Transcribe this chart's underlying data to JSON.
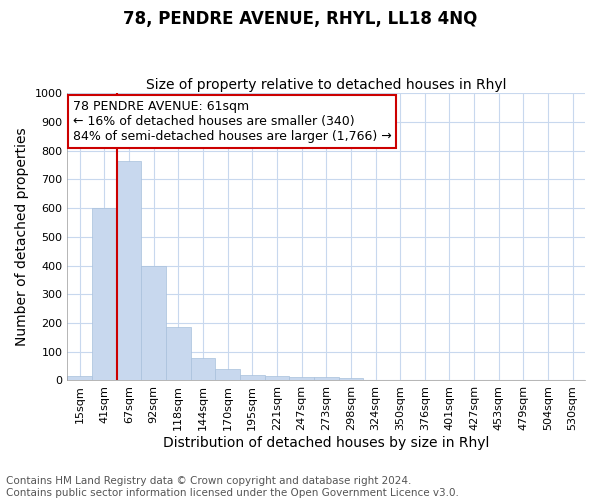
{
  "title": "78, PENDRE AVENUE, RHYL, LL18 4NQ",
  "subtitle": "Size of property relative to detached houses in Rhyl",
  "xlabel": "Distribution of detached houses by size in Rhyl",
  "ylabel": "Number of detached properties",
  "bar_labels": [
    "15sqm",
    "41sqm",
    "67sqm",
    "92sqm",
    "118sqm",
    "144sqm",
    "170sqm",
    "195sqm",
    "221sqm",
    "247sqm",
    "273sqm",
    "298sqm",
    "324sqm",
    "350sqm",
    "376sqm",
    "401sqm",
    "427sqm",
    "453sqm",
    "479sqm",
    "504sqm",
    "530sqm"
  ],
  "bar_values": [
    15,
    600,
    765,
    400,
    185,
    78,
    40,
    18,
    15,
    12,
    12,
    8,
    3,
    1,
    1,
    1,
    0,
    0,
    0,
    0,
    0
  ],
  "bar_color": "#c8d8ee",
  "bar_edgecolor": "#a8c0dc",
  "vline_x_idx": 2,
  "vline_color": "#cc0000",
  "ylim": [
    0,
    1000
  ],
  "yticks": [
    0,
    100,
    200,
    300,
    400,
    500,
    600,
    700,
    800,
    900,
    1000
  ],
  "annotation_text": "78 PENDRE AVENUE: 61sqm\n← 16% of detached houses are smaller (340)\n84% of semi-detached houses are larger (1,766) →",
  "annotation_box_facecolor": "#ffffff",
  "annotation_box_edgecolor": "#cc0000",
  "bg_color": "#ffffff",
  "plot_bg_color": "#ffffff",
  "grid_color": "#c8d8ee",
  "footer_text": "Contains HM Land Registry data © Crown copyright and database right 2024.\nContains public sector information licensed under the Open Government Licence v3.0.",
  "title_fontsize": 12,
  "subtitle_fontsize": 10,
  "axis_label_fontsize": 10,
  "tick_fontsize": 8,
  "annotation_fontsize": 9,
  "footer_fontsize": 7.5
}
